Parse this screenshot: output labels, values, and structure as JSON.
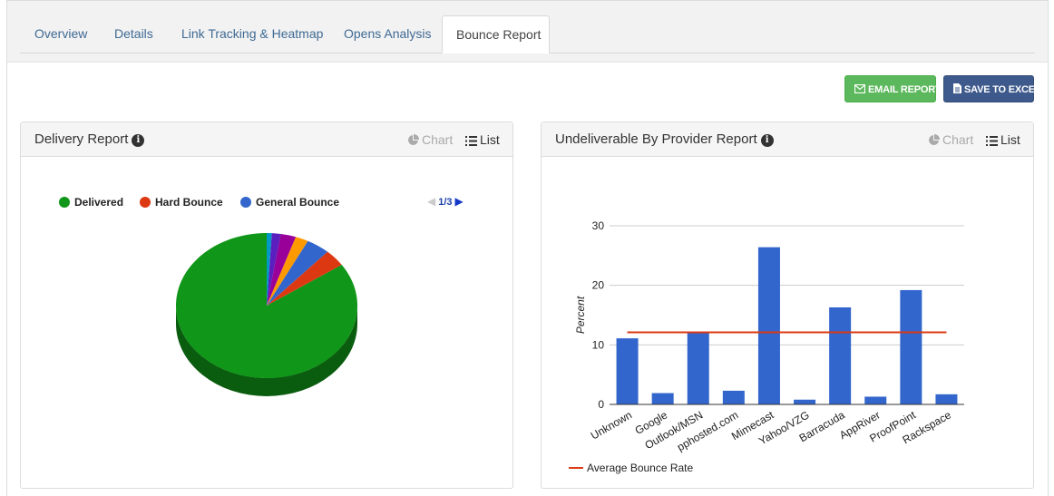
{
  "tabs": [
    {
      "label": "Overview",
      "active": false
    },
    {
      "label": "Details",
      "active": false
    },
    {
      "label": "Link Tracking & Heatmap",
      "active": false
    },
    {
      "label": "Opens Analysis",
      "active": false
    },
    {
      "label": "Bounce Report",
      "active": true
    }
  ],
  "toolbar": {
    "email_label": "EMAIL REPORT",
    "excel_label": "SAVE TO EXCEL"
  },
  "delivery_panel": {
    "title": "Delivery Report",
    "chart_toggle": "Chart",
    "list_toggle": "List",
    "pager": "1/3",
    "legend": [
      {
        "label": "Delivered",
        "color": "#109618"
      },
      {
        "label": "Hard Bounce",
        "color": "#dc3912"
      },
      {
        "label": "General Bounce",
        "color": "#3366cc"
      }
    ]
  },
  "provider_panel": {
    "title": "Undeliverable By Provider Report",
    "chart_toggle": "Chart",
    "list_toggle": "List",
    "legend_label": "Average Bounce Rate"
  },
  "chart_data": [
    {
      "type": "pie",
      "labels": [
        "Delivered",
        "Hard Bounce",
        "General Bounce",
        "",
        "",
        "",
        ""
      ],
      "values": [
        84.5,
        3.8,
        4.2,
        2.3,
        2.7,
        1.6,
        0.9
      ],
      "colors": [
        "#109618",
        "#dc3912",
        "#3366cc",
        "#ff9900",
        "#990099",
        "#5b1fbf",
        "#0099c6"
      ],
      "legend_position": "top"
    },
    {
      "type": "bar",
      "categories": [
        "Unknown",
        "Google",
        "Outlook/MSN",
        "pphosted.com",
        "Mimecast",
        "Yahoo/VZG",
        "Barracuda",
        "AppRiver",
        "ProofPoint",
        "Rackspace"
      ],
      "series": [
        {
          "values": [
            11.1,
            1.9,
            12.2,
            2.3,
            26.4,
            0.8,
            16.3,
            1.3,
            19.2,
            1.7
          ],
          "color": "#3366cc"
        },
        {
          "name": "Average Bounce Rate",
          "type": "line",
          "values": [
            12.1,
            12.1,
            12.1,
            12.1,
            12.1,
            12.1,
            12.1,
            12.1,
            12.1,
            12.1
          ],
          "color": "#dc3912"
        }
      ],
      "ylabel": "Percent",
      "ylim": [
        0,
        30
      ],
      "yticks": [
        0,
        10,
        20,
        30
      ],
      "grid": true,
      "legend_position": "bottom-left"
    }
  ]
}
